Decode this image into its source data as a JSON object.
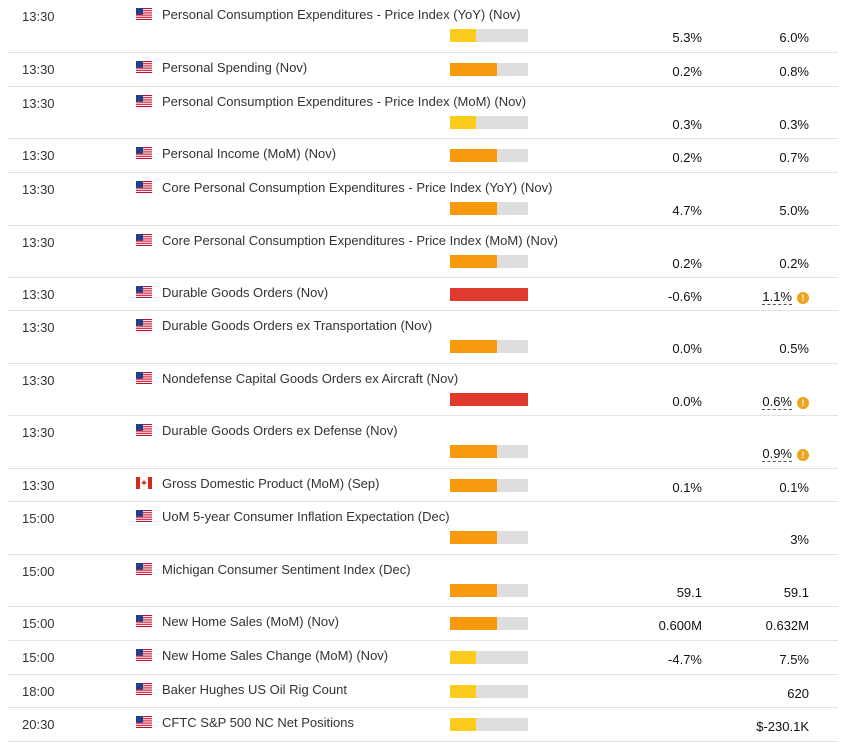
{
  "colors": {
    "low": "#fbcc1c",
    "medium": "#f79a0e",
    "high": "#e03a2f",
    "empty": "#dedede"
  },
  "events": [
    {
      "time": "13:30",
      "country": "us",
      "name": "Personal Consumption Expenditures - Price Index (YoY) (Nov)",
      "impact": "low",
      "impact_level": 0.33,
      "actual": "5.3%",
      "forecast": "6.0%",
      "warn": false,
      "tall": true
    },
    {
      "time": "13:30",
      "country": "us",
      "name": "Personal Spending (Nov)",
      "impact": "medium",
      "impact_level": 0.6,
      "actual": "0.2%",
      "forecast": "0.8%",
      "warn": false,
      "tall": false
    },
    {
      "time": "13:30",
      "country": "us",
      "name": "Personal Consumption Expenditures - Price Index (MoM) (Nov)",
      "impact": "low",
      "impact_level": 0.33,
      "actual": "0.3%",
      "forecast": "0.3%",
      "warn": false,
      "tall": true
    },
    {
      "time": "13:30",
      "country": "us",
      "name": "Personal Income (MoM) (Nov)",
      "impact": "medium",
      "impact_level": 0.6,
      "actual": "0.2%",
      "forecast": "0.7%",
      "warn": false,
      "tall": false
    },
    {
      "time": "13:30",
      "country": "us",
      "name": "Core Personal Consumption Expenditures - Price Index (YoY) (Nov)",
      "impact": "medium",
      "impact_level": 0.6,
      "actual": "4.7%",
      "forecast": "5.0%",
      "warn": false,
      "tall": true
    },
    {
      "time": "13:30",
      "country": "us",
      "name": "Core Personal Consumption Expenditures - Price Index (MoM) (Nov)",
      "impact": "medium",
      "impact_level": 0.6,
      "actual": "0.2%",
      "forecast": "0.2%",
      "warn": false,
      "tall": true
    },
    {
      "time": "13:30",
      "country": "us",
      "name": "Durable Goods Orders (Nov)",
      "impact": "high",
      "impact_level": 1.0,
      "actual": "-0.6%",
      "forecast": "1.1%",
      "warn": true,
      "tall": false
    },
    {
      "time": "13:30",
      "country": "us",
      "name": "Durable Goods Orders ex Transportation (Nov)",
      "impact": "medium",
      "impact_level": 0.6,
      "actual": "0.0%",
      "forecast": "0.5%",
      "warn": false,
      "tall": true
    },
    {
      "time": "13:30",
      "country": "us",
      "name": "Nondefense Capital Goods Orders ex Aircraft (Nov)",
      "impact": "high",
      "impact_level": 1.0,
      "actual": "0.0%",
      "forecast": "0.6%",
      "warn": true,
      "tall": true
    },
    {
      "time": "13:30",
      "country": "us",
      "name": "Durable Goods Orders ex Defense (Nov)",
      "impact": "medium",
      "impact_level": 0.6,
      "actual": "",
      "forecast": "0.9%",
      "warn": true,
      "tall": true
    },
    {
      "time": "13:30",
      "country": "ca",
      "name": "Gross Domestic Product (MoM) (Sep)",
      "impact": "medium",
      "impact_level": 0.6,
      "actual": "0.1%",
      "forecast": "0.1%",
      "warn": false,
      "tall": false
    },
    {
      "time": "15:00",
      "country": "us",
      "name": "UoM 5-year Consumer Inflation Expectation (Dec)",
      "impact": "medium",
      "impact_level": 0.6,
      "actual": "",
      "forecast": "3%",
      "warn": false,
      "tall": true
    },
    {
      "time": "15:00",
      "country": "us",
      "name": "Michigan Consumer Sentiment Index (Dec)",
      "impact": "medium",
      "impact_level": 0.6,
      "actual": "59.1",
      "forecast": "59.1",
      "warn": false,
      "tall": true
    },
    {
      "time": "15:00",
      "country": "us",
      "name": "New Home Sales (MoM) (Nov)",
      "impact": "medium",
      "impact_level": 0.6,
      "actual": "0.600M",
      "forecast": "0.632M",
      "warn": false,
      "tall": false
    },
    {
      "time": "15:00",
      "country": "us",
      "name": "New Home Sales Change (MoM) (Nov)",
      "impact": "low",
      "impact_level": 0.33,
      "actual": "-4.7%",
      "forecast": "7.5%",
      "warn": false,
      "tall": false
    },
    {
      "time": "18:00",
      "country": "us",
      "name": "Baker Hughes US Oil Rig Count",
      "impact": "low",
      "impact_level": 0.33,
      "actual": "",
      "forecast": "620",
      "warn": false,
      "tall": false
    },
    {
      "time": "20:30",
      "country": "us",
      "name": "CFTC S&P 500 NC Net Positions",
      "impact": "low",
      "impact_level": 0.33,
      "actual": "",
      "forecast": "$-230.1K",
      "warn": false,
      "tall": false
    }
  ]
}
